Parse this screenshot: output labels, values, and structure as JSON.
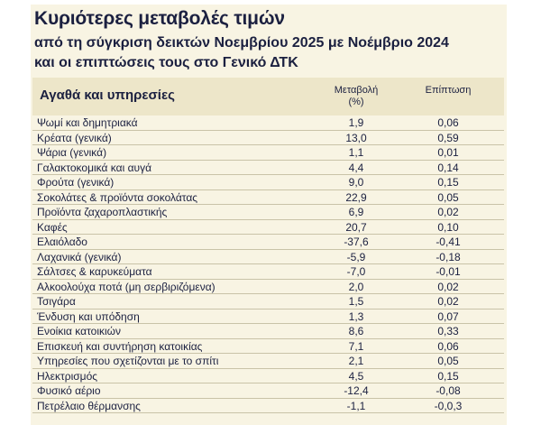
{
  "title": "Κυριότερες μεταβολές τιμών",
  "subtitle_line1": "από τη σύγκριση δεικτών Νοεμβρίου 2025 με Νοέμβριο 2024",
  "subtitle_line2": "και οι επιπτώσεις τους στο Γενικό ΔΤΚ",
  "table": {
    "headers": {
      "goods": "Αγαθά και υπηρεσίες",
      "change": "Μεταβολή\n(%)",
      "impact": "Επίπτωση"
    },
    "rows": [
      {
        "name": "Ψωμί και δημητριακά",
        "change": "1,9",
        "impact": "0,06"
      },
      {
        "name": "Κρέατα (γενικά)",
        "change": "13,0",
        "impact": "0,59"
      },
      {
        "name": "Ψάρια (γενικά)",
        "change": "1,1",
        "impact": "0,01"
      },
      {
        "name": "Γαλακτοκομικά και αυγά",
        "change": "4,4",
        "impact": "0,14"
      },
      {
        "name": "Φρούτα (γενικά)",
        "change": "9,0",
        "impact": "0,15"
      },
      {
        "name": "Σοκολάτες & προϊόντα σοκολάτας",
        "change": "22,9",
        "impact": "0,05"
      },
      {
        "name": "Προϊόντα ζαχαροπλαστικής",
        "change": "6,9",
        "impact": "0,02"
      },
      {
        "name": "Καφές",
        "change": "20,7",
        "impact": "0,10"
      },
      {
        "name": "Ελαιόλαδο",
        "change": "-37,6",
        "impact": "-0,41"
      },
      {
        "name": "Λαχανικά (γενικά)",
        "change": "-5,9",
        "impact": "-0,18"
      },
      {
        "name": "Σάλτσες & καρυκεύματα",
        "change": "-7,0",
        "impact": "-0,01"
      },
      {
        "name": "Αλκοολούχα ποτά (μη σερβιριζόμενα)",
        "change": "2,0",
        "impact": "0,02"
      },
      {
        "name": "Τσιγάρα",
        "change": "1,5",
        "impact": "0,02"
      },
      {
        "name": "Ένδυση και υπόδηση",
        "change": "1,3",
        "impact": "0,07"
      },
      {
        "name": "Ενοίκια κατοικιών",
        "change": "8,6",
        "impact": "0,33"
      },
      {
        "name": "Επισκευή και συντήρηση κατοικίας",
        "change": "7,1",
        "impact": "0,06"
      },
      {
        "name": "Υπηρεσίες που σχετίζονται με το σπίτι",
        "change": "2,1",
        "impact": "0,05"
      },
      {
        "name": "Ηλεκτρισμός",
        "change": "4,5",
        "impact": "0,15"
      },
      {
        "name": "Φυσικό αέριο",
        "change": "-12,4",
        "impact": "-0,08"
      },
      {
        "name": "Πετρέλαιο θέρμανσης",
        "change": "-1,1",
        "impact": "-0,0,3"
      }
    ]
  }
}
